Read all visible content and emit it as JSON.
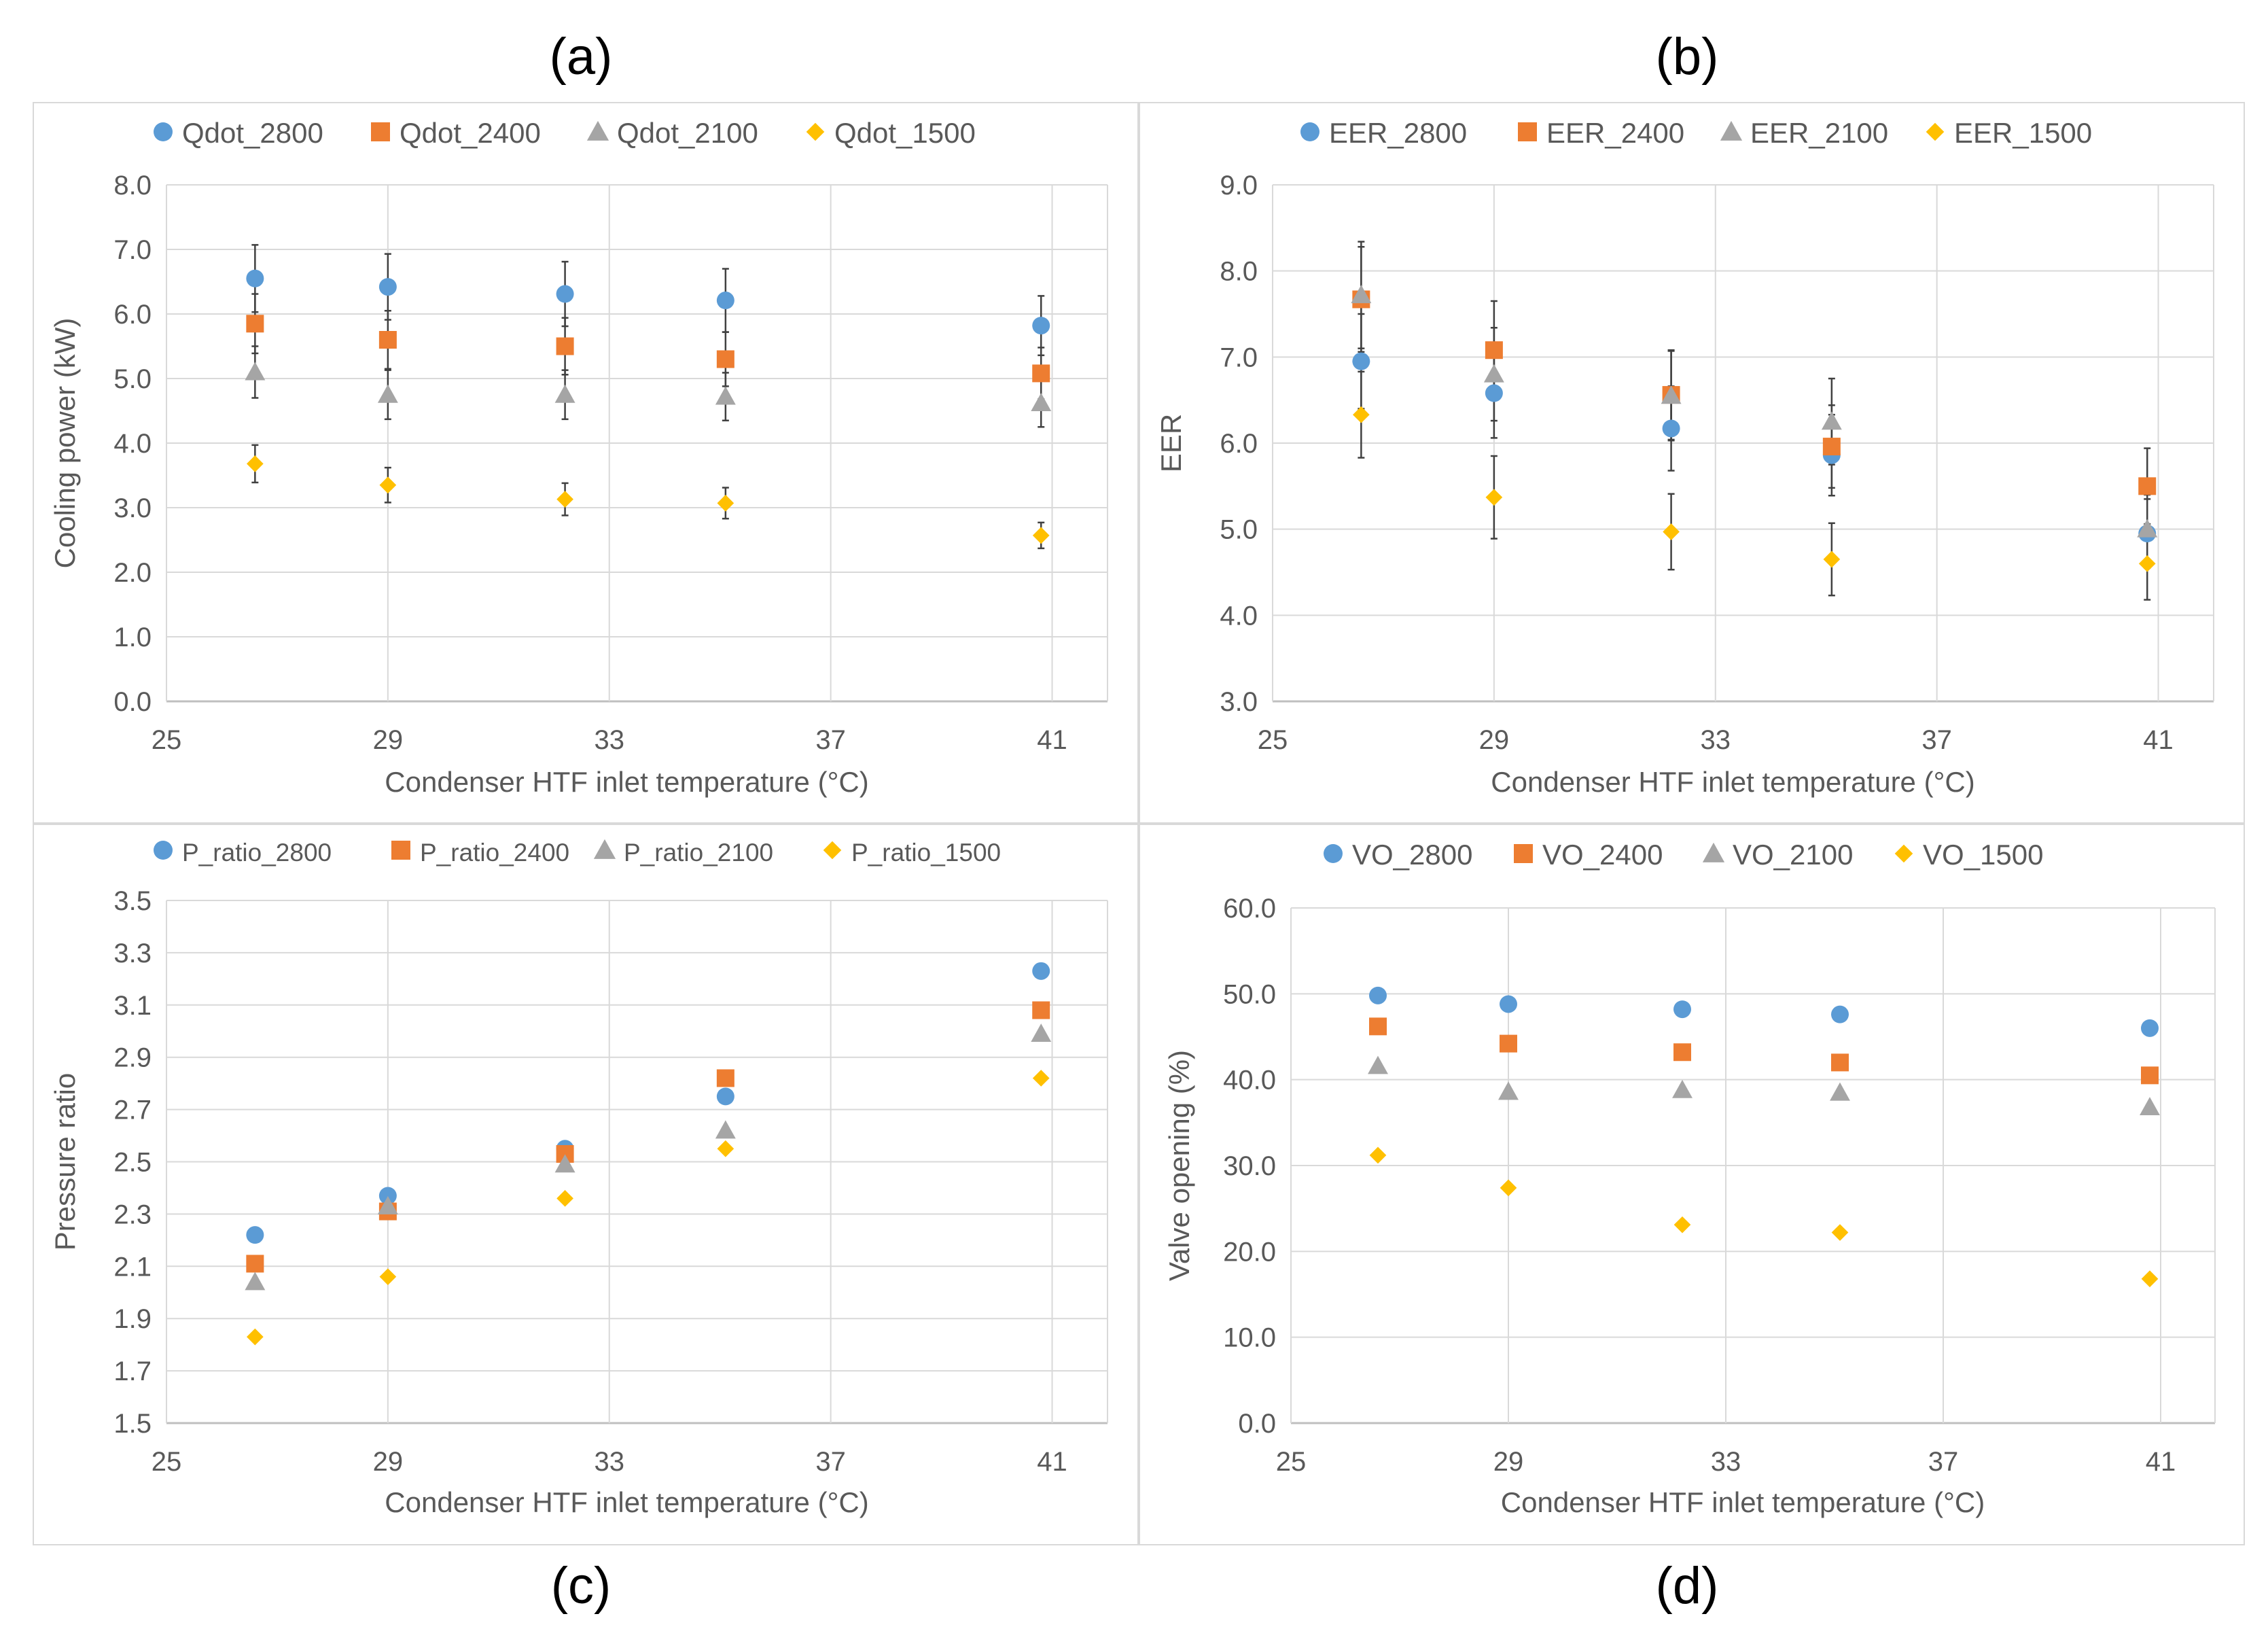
{
  "panel_labels": [
    "(a)",
    "(b)",
    "(c)",
    "(d)"
  ],
  "colors": {
    "s2800": "#5b9bd5",
    "s2400": "#ed7d31",
    "s2100": "#a5a5a5",
    "s1500": "#ffc000",
    "grid": "#d9d9d9",
    "axis": "#bfbfbf",
    "text": "#595959",
    "error": "#404040"
  },
  "chart_data": [
    {
      "type": "scatter",
      "title": "",
      "xlabel": "Condenser HTF inlet temperature (°C)",
      "ylabel": "Cooling power (kW)",
      "xlim": [
        25,
        42
      ],
      "ylim": [
        0,
        8
      ],
      "xticks": [
        25,
        29,
        33,
        37,
        41
      ],
      "xtick_labels": [
        "25",
        "29",
        "33",
        "37",
        "41"
      ],
      "yticks": [
        0,
        1,
        2,
        3,
        4,
        5,
        6,
        7,
        8
      ],
      "ytick_labels": [
        "0.0",
        "1.0",
        "2.0",
        "3.0",
        "4.0",
        "5.0",
        "6.0",
        "7.0",
        "8.0"
      ],
      "grid": true,
      "legend_position": "top",
      "error_bars": true,
      "series": [
        {
          "name": "Qdot_2800",
          "marker": "circle",
          "x": [
            26.6,
            29.0,
            32.2,
            35.1,
            40.8
          ],
          "y": [
            6.55,
            6.42,
            6.31,
            6.21,
            5.82
          ],
          "err": [
            0.52,
            0.51,
            0.5,
            0.49,
            0.46
          ]
        },
        {
          "name": "Qdot_2400",
          "marker": "square",
          "x": [
            26.6,
            29.0,
            32.2,
            35.1,
            40.8
          ],
          "y": [
            5.85,
            5.6,
            5.5,
            5.3,
            5.08
          ],
          "err": [
            0.46,
            0.45,
            0.44,
            0.42,
            0.4
          ]
        },
        {
          "name": "Qdot_2100",
          "marker": "triangle",
          "x": [
            26.6,
            29.0,
            32.2,
            35.1,
            40.8
          ],
          "y": [
            5.1,
            4.75,
            4.75,
            4.72,
            4.62
          ],
          "err": [
            0.4,
            0.38,
            0.38,
            0.37,
            0.37
          ]
        },
        {
          "name": "Qdot_1500",
          "marker": "diamond",
          "x": [
            26.6,
            29.0,
            32.2,
            35.1,
            40.8
          ],
          "y": [
            3.68,
            3.35,
            3.13,
            3.07,
            2.57
          ],
          "err": [
            0.29,
            0.27,
            0.25,
            0.24,
            0.2
          ]
        }
      ]
    },
    {
      "type": "scatter",
      "title": "",
      "xlabel": "Condenser HTF inlet temperature (°C)",
      "ylabel": "EER",
      "xlim": [
        25,
        42
      ],
      "ylim": [
        3,
        9
      ],
      "xticks": [
        25,
        29,
        33,
        37,
        41
      ],
      "xtick_labels": [
        "25",
        "29",
        "33",
        "37",
        "41"
      ],
      "yticks": [
        3,
        4,
        5,
        6,
        7,
        8,
        9
      ],
      "ytick_labels": [
        "3.0",
        "4.0",
        "5.0",
        "6.0",
        "7.0",
        "8.0",
        "9.0"
      ],
      "grid": true,
      "legend_position": "top",
      "error_bars": true,
      "series": [
        {
          "name": "EER_2800",
          "marker": "circle",
          "x": [
            26.6,
            29.0,
            32.2,
            35.1,
            40.8
          ],
          "y": [
            6.95,
            6.58,
            6.17,
            5.86,
            4.95
          ],
          "err": [
            0.55,
            0.52,
            0.49,
            0.47,
            0.4
          ]
        },
        {
          "name": "EER_2400",
          "marker": "square",
          "x": [
            26.6,
            29.0,
            32.2,
            35.1,
            40.8
          ],
          "y": [
            7.67,
            7.08,
            6.56,
            5.96,
            5.5
          ],
          "err": [
            0.61,
            0.57,
            0.52,
            0.48,
            0.44
          ]
        },
        {
          "name": "EER_2100",
          "marker": "triangle",
          "x": [
            26.6,
            29.0,
            32.2,
            35.1,
            40.8
          ],
          "y": [
            7.72,
            6.8,
            6.55,
            6.25,
            5.0
          ],
          "err": [
            0.62,
            0.54,
            0.52,
            0.5,
            0.4
          ]
        },
        {
          "name": "EER_1500",
          "marker": "diamond",
          "x": [
            26.6,
            29.0,
            32.2,
            35.1,
            40.8
          ],
          "y": [
            6.33,
            5.37,
            4.97,
            4.65,
            4.6
          ],
          "err": [
            0.5,
            0.48,
            0.44,
            0.42,
            0.42
          ]
        }
      ]
    },
    {
      "type": "scatter",
      "title": "",
      "xlabel": "Condenser HTF inlet temperature (°C)",
      "ylabel": "Pressure ratio",
      "xlim": [
        25,
        42
      ],
      "ylim": [
        1.5,
        3.5
      ],
      "xticks": [
        25,
        29,
        33,
        37,
        41
      ],
      "xtick_labels": [
        "25",
        "29",
        "33",
        "37",
        "41"
      ],
      "yticks": [
        1.5,
        1.7,
        1.9,
        2.1,
        2.3,
        2.5,
        2.7,
        2.9,
        3.1,
        3.3,
        3.5
      ],
      "ytick_labels": [
        "1.5",
        "1.7",
        "1.9",
        "2.1",
        "2.3",
        "2.5",
        "2.7",
        "2.9",
        "3.1",
        "3.3",
        "3.5"
      ],
      "grid": true,
      "legend_position": "top",
      "error_bars": false,
      "series": [
        {
          "name": "P_ratio_2800",
          "marker": "circle",
          "x": [
            26.6,
            29.0,
            32.2,
            35.1,
            40.8
          ],
          "y": [
            2.22,
            2.37,
            2.55,
            2.75,
            3.23
          ]
        },
        {
          "name": "P_ratio_2400",
          "marker": "square",
          "x": [
            26.6,
            29.0,
            32.2,
            35.1,
            40.8
          ],
          "y": [
            2.11,
            2.31,
            2.53,
            2.82,
            3.08
          ]
        },
        {
          "name": "P_ratio_2100",
          "marker": "triangle",
          "x": [
            26.6,
            29.0,
            32.2,
            35.1,
            40.8
          ],
          "y": [
            2.04,
            2.33,
            2.49,
            2.62,
            2.99
          ]
        },
        {
          "name": "P_ratio_1500",
          "marker": "diamond",
          "x": [
            26.6,
            29.0,
            32.2,
            35.1,
            40.8
          ],
          "y": [
            1.83,
            2.06,
            2.36,
            2.55,
            2.82
          ]
        }
      ]
    },
    {
      "type": "scatter",
      "title": "",
      "xlabel": "Condenser HTF inlet temperature (°C)",
      "ylabel": "Valve opening (%)",
      "xlim": [
        25,
        42
      ],
      "ylim": [
        0,
        60
      ],
      "xticks": [
        25,
        29,
        33,
        37,
        41
      ],
      "xtick_labels": [
        "25",
        "29",
        "33",
        "37",
        "41"
      ],
      "yticks": [
        0,
        10,
        20,
        30,
        40,
        50,
        60
      ],
      "ytick_labels": [
        "0.0",
        "10.0",
        "20.0",
        "30.0",
        "40.0",
        "50.0",
        "60.0"
      ],
      "grid": true,
      "legend_position": "top",
      "error_bars": false,
      "series": [
        {
          "name": "VO_2800",
          "marker": "circle",
          "x": [
            26.6,
            29.0,
            32.2,
            35.1,
            40.8
          ],
          "y": [
            49.8,
            48.8,
            48.2,
            47.6,
            46.0
          ]
        },
        {
          "name": "VO_2400",
          "marker": "square",
          "x": [
            26.6,
            29.0,
            32.2,
            35.1,
            40.8
          ],
          "y": [
            46.2,
            44.2,
            43.2,
            42.0,
            40.5
          ]
        },
        {
          "name": "VO_2100",
          "marker": "triangle",
          "x": [
            26.6,
            29.0,
            32.2,
            35.1,
            40.8
          ],
          "y": [
            41.6,
            38.6,
            38.8,
            38.5,
            36.8
          ]
        },
        {
          "name": "VO_1500",
          "marker": "diamond",
          "x": [
            26.6,
            29.0,
            32.2,
            35.1,
            40.8
          ],
          "y": [
            31.2,
            27.4,
            23.1,
            22.2,
            16.8
          ]
        }
      ]
    }
  ]
}
